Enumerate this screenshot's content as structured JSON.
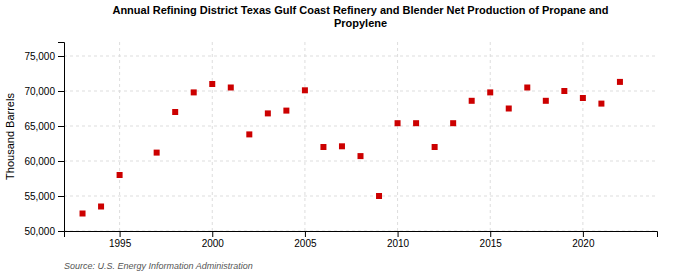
{
  "chart_data": {
    "type": "scatter",
    "title": "Annual Refining District Texas Gulf Coast Refinery and Blender Net Production of Propane and\nPropylene",
    "y_label": "Thousand Barrels",
    "annotations": [
      "Source: U.S. Energy Information Administration"
    ],
    "x": [
      1993,
      1994,
      1995,
      1997,
      1998,
      1999,
      2000,
      2001,
      2002,
      2003,
      2004,
      2005,
      2006,
      2007,
      2008,
      2009,
      2010,
      2011,
      2012,
      2013,
      2014,
      2015,
      2016,
      2017,
      2018,
      2019,
      2020,
      2021,
      2022
    ],
    "values": [
      52500,
      53500,
      58000,
      61200,
      67000,
      69800,
      71000,
      70500,
      63800,
      66800,
      67200,
      70100,
      62000,
      62100,
      60700,
      55000,
      65400,
      65400,
      62000,
      65400,
      68600,
      69800,
      67500,
      70500,
      68600,
      70000,
      69000,
      68200,
      71300
    ],
    "color": "#cc0000",
    "marker": "square",
    "xlim": [
      1992,
      2024
    ],
    "xticks": [
      1995,
      2000,
      2005,
      2010,
      2015,
      2020
    ],
    "ylim": [
      50000,
      77000
    ],
    "yticks": [
      {
        "value": 50000,
        "label": "50,000"
      },
      {
        "value": 55000,
        "label": "55,000"
      },
      {
        "value": 60000,
        "label": "60,000"
      },
      {
        "value": 65000,
        "label": "65,000"
      },
      {
        "value": 70000,
        "label": "70,000"
      },
      {
        "value": 75000,
        "label": "75,000"
      }
    ],
    "grid": true
  }
}
